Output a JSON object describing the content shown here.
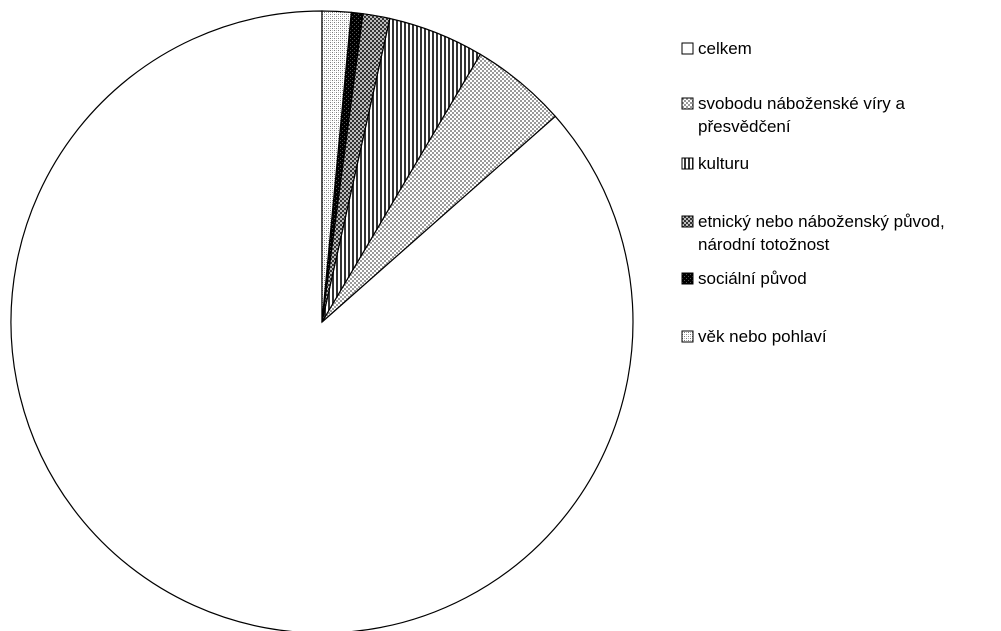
{
  "chart_data": {
    "type": "pie",
    "title": "",
    "start_angle_deg": 0,
    "direction": "counterclockwise",
    "slices": [
      {
        "label": "celkem",
        "legend_lines": [
          "celkem"
        ],
        "value": 86.5,
        "pattern": "white",
        "color": "#ffffff"
      },
      {
        "label": "svobodu náboženské víry a přesvědčení",
        "legend_lines": [
          "svobodu náboženské víry a",
          "přesvědčení"
        ],
        "value": 5.0,
        "pattern": "dots-light",
        "color": "#c8c8c8"
      },
      {
        "label": "kulturu",
        "legend_lines": [
          "kulturu"
        ],
        "value": 5.0,
        "pattern": "vertical-stripes",
        "color": "#808080"
      },
      {
        "label": "etnický nebo náboženský původ, národní totožnost",
        "legend_lines": [
          "etnický nebo náboženský původ,",
          "národní totožnost"
        ],
        "value": 1.4,
        "pattern": "crosshatch",
        "color": "#8a8a8a"
      },
      {
        "label": "sociální původ",
        "legend_lines": [
          "sociální původ"
        ],
        "value": 0.6,
        "pattern": "dark",
        "color": "#1a1a1a"
      },
      {
        "label": "věk nebo pohlaví",
        "legend_lines": [
          "věk nebo pohlaví"
        ],
        "value": 1.5,
        "pattern": "dots-fine",
        "color": "#d8d8d8"
      }
    ],
    "legend_position": "right",
    "grid": false
  }
}
